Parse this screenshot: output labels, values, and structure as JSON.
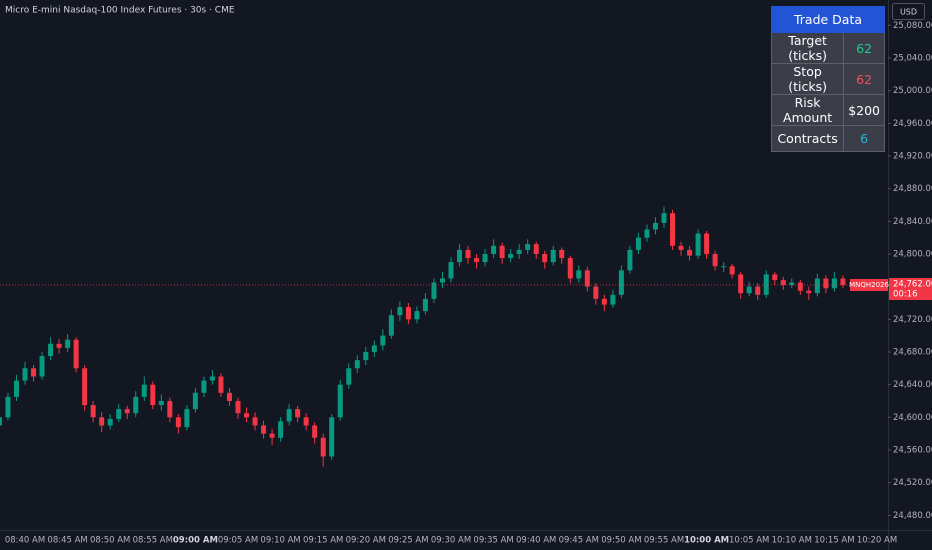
{
  "chart_data": {
    "type": "candlestick",
    "title": "Micro E-mini Nasdaq-100 Index Futures · 30s · CME",
    "currency": "USD",
    "up_color": "#089981",
    "down_color": "#f23645",
    "ylim": [
      24462,
      25111
    ],
    "yticks": [
      {
        "value": 24480,
        "label": "24,480.00"
      },
      {
        "value": 24520,
        "label": "24,520.00"
      },
      {
        "value": 24560,
        "label": "24,560.00"
      },
      {
        "value": 24600,
        "label": "24,600.00"
      },
      {
        "value": 24640,
        "label": "24,640.00"
      },
      {
        "value": 24680,
        "label": "24,680.00"
      },
      {
        "value": 24720,
        "label": "24,720.00"
      },
      {
        "value": 24800,
        "label": "24,800.00"
      },
      {
        "value": 24840,
        "label": "24,840.00"
      },
      {
        "value": 24880,
        "label": "24,880.00"
      },
      {
        "value": 24920,
        "label": "24,920.00"
      },
      {
        "value": 24960,
        "label": "24,960.00"
      },
      {
        "value": 25000,
        "label": "25,000.00"
      },
      {
        "value": 25040,
        "label": "25,040.00"
      },
      {
        "value": 25080,
        "label": "25,080.00"
      }
    ],
    "last_price": {
      "value": 24762,
      "label": "24,762.00"
    },
    "symbol_label": "MNQH2026",
    "countdown": "00:16",
    "categories": [
      null,
      null,
      null,
      "08:40 AM",
      null,
      null,
      null,
      null,
      "08:45 AM",
      null,
      null,
      null,
      null,
      "08:50 AM",
      null,
      null,
      null,
      null,
      "08:55 AM",
      null,
      null,
      null,
      null,
      "09:00 AM",
      null,
      null,
      null,
      null,
      "09:05 AM",
      null,
      null,
      null,
      null,
      "09:10 AM",
      null,
      null,
      null,
      null,
      "09:15 AM",
      null,
      null,
      null,
      null,
      "09:20 AM",
      null,
      null,
      null,
      null,
      "09:25 AM",
      null,
      null,
      null,
      null,
      "09:30 AM",
      null,
      null,
      null,
      null,
      "09:35 AM",
      null,
      null,
      null,
      null,
      "09:40 AM",
      null,
      null,
      null,
      null,
      "09:45 AM",
      null,
      null,
      null,
      null,
      "09:50 AM",
      null,
      null,
      null,
      null,
      "09:55 AM",
      null,
      null,
      null,
      null,
      "10:00 AM",
      null,
      null,
      null,
      null,
      "10:05 AM",
      null,
      null,
      null,
      null,
      "10:10 AM",
      null,
      null,
      null,
      null,
      "10:15 AM",
      null,
      null,
      null,
      null,
      "10:20 AM"
    ],
    "open": [
      24590,
      24600,
      24625,
      24645,
      24660,
      24650,
      24675,
      24690,
      24685,
      24695,
      24660,
      24615,
      24600,
      24590,
      24598,
      24610,
      24605,
      24625,
      24640,
      24615,
      24620,
      24600,
      24588,
      24610,
      24630,
      24645,
      24650,
      24630,
      24620,
      24605,
      24600,
      24590,
      24580,
      24575,
      24595,
      24610,
      24600,
      24590,
      24575,
      24552,
      24600,
      24640,
      24660,
      24670,
      24680,
      24688,
      24700,
      24725,
      24735,
      24720,
      24730,
      24745,
      24765,
      24770,
      24790,
      24805,
      24795,
      24790,
      24800,
      24810,
      24795,
      24800,
      24805,
      24812,
      24800,
      24790,
      24805,
      24795,
      24770,
      24780,
      24760,
      24745,
      24738,
      24750,
      24780,
      24805,
      24820,
      24830,
      24838,
      24850,
      24810,
      24805,
      24798,
      24825,
      24800,
      24785,
      24785,
      24775,
      24752,
      24760,
      24750,
      24775,
      24768,
      24762,
      24765,
      24755,
      24752,
      24770,
      24758,
      24770,
      null,
      null,
      null,
      null
    ],
    "high": [
      24606,
      24630,
      24652,
      24668,
      24664,
      24680,
      24698,
      24696,
      24702,
      24698,
      24664,
      24620,
      24606,
      24604,
      24616,
      24614,
      24632,
      24650,
      24644,
      24628,
      24624,
      24604,
      24615,
      24636,
      24650,
      24658,
      24654,
      24636,
      24624,
      24612,
      24606,
      24596,
      24586,
      24600,
      24616,
      24614,
      24605,
      24594,
      24580,
      24604,
      24646,
      24666,
      24676,
      24686,
      24694,
      24708,
      24732,
      24742,
      24740,
      24736,
      24752,
      24770,
      24778,
      24796,
      24812,
      24810,
      24800,
      24806,
      24818,
      24814,
      24806,
      24812,
      24818,
      24815,
      24804,
      24810,
      24808,
      24798,
      24786,
      24784,
      24764,
      24750,
      24756,
      24786,
      24810,
      24826,
      24836,
      24845,
      24858,
      24854,
      24815,
      24810,
      24830,
      24828,
      24804,
      24790,
      24788,
      24778,
      24766,
      24764,
      24780,
      24778,
      24772,
      24770,
      24768,
      24760,
      24776,
      24774,
      24778,
      24774,
      null,
      null,
      null,
      null
    ],
    "low": [
      24584,
      24596,
      24620,
      24640,
      24644,
      24646,
      24670,
      24678,
      24680,
      24655,
      24608,
      24594,
      24582,
      24585,
      24594,
      24598,
      24600,
      24620,
      24610,
      24608,
      24594,
      24580,
      24584,
      24606,
      24625,
      24640,
      24625,
      24614,
      24598,
      24594,
      24584,
      24574,
      24566,
      24570,
      24590,
      24594,
      24584,
      24568,
      24540,
      24548,
      24596,
      24635,
      24654,
      24664,
      24674,
      24682,
      24696,
      24718,
      24714,
      24715,
      24726,
      24740,
      24758,
      24765,
      24785,
      24788,
      24782,
      24785,
      24795,
      24788,
      24790,
      24794,
      24800,
      24794,
      24782,
      24786,
      24788,
      24764,
      24765,
      24754,
      24738,
      24730,
      24734,
      24746,
      24776,
      24800,
      24815,
      24824,
      24832,
      24805,
      24798,
      24792,
      24794,
      24794,
      24780,
      24778,
      24770,
      24745,
      24748,
      24744,
      24746,
      24762,
      24756,
      24758,
      24750,
      24744,
      24748,
      24752,
      24754,
      24758,
      null,
      null,
      null,
      null
    ],
    "close": [
      24600,
      24625,
      24645,
      24660,
      24650,
      24675,
      24690,
      24685,
      24695,
      24660,
      24615,
      24600,
      24590,
      24598,
      24610,
      24605,
      24625,
      24640,
      24615,
      24620,
      24600,
      24588,
      24610,
      24630,
      24645,
      24650,
      24630,
      24620,
      24605,
      24600,
      24590,
      24580,
      24575,
      24595,
      24610,
      24600,
      24590,
      24575,
      24552,
      24600,
      24640,
      24660,
      24670,
      24680,
      24688,
      24700,
      24725,
      24735,
      24720,
      24730,
      24745,
      24765,
      24770,
      24790,
      24805,
      24795,
      24790,
      24800,
      24810,
      24795,
      24800,
      24805,
      24812,
      24800,
      24790,
      24805,
      24795,
      24770,
      24780,
      24760,
      24745,
      24738,
      24750,
      24780,
      24805,
      24820,
      24830,
      24838,
      24850,
      24810,
      24805,
      24798,
      24825,
      24800,
      24785,
      24785,
      24775,
      24752,
      24760,
      24750,
      24775,
      24768,
      24762,
      24765,
      24755,
      24752,
      24770,
      24758,
      24770,
      24762,
      null,
      null,
      null,
      null
    ]
  },
  "trade_table": {
    "title": "Trade Data",
    "rows": [
      [
        "Target (ticks)",
        "62"
      ],
      [
        "Stop (ticks)",
        "62"
      ],
      [
        "Risk Amount",
        "$200"
      ],
      [
        "Contracts",
        "6"
      ]
    ]
  }
}
